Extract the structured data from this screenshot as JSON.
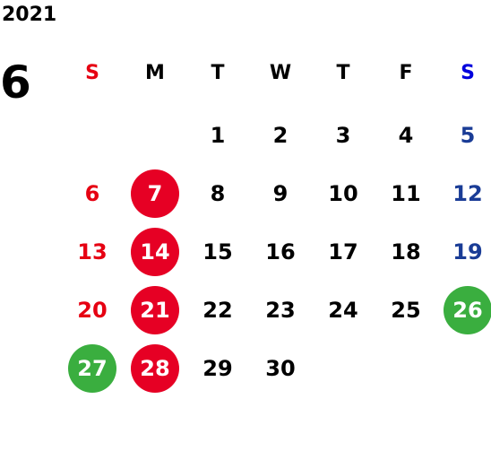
{
  "year": "2021",
  "month": "6",
  "colors": {
    "sunday": "#e60012",
    "saturday": "#1a3c96",
    "saturday_header": "#0000dd",
    "default": "#000000",
    "holiday_red": "#e60024",
    "holiday_green": "#3aae3f",
    "circle_text": "#ffffff"
  },
  "weekdays": [
    "S",
    "M",
    "T",
    "W",
    "T",
    "F",
    "S"
  ],
  "days": [
    {
      "label": "1",
      "col": 2,
      "row": 0
    },
    {
      "label": "2",
      "col": 3,
      "row": 0
    },
    {
      "label": "3",
      "col": 4,
      "row": 0
    },
    {
      "label": "4",
      "col": 5,
      "row": 0
    },
    {
      "label": "5",
      "col": 6,
      "row": 0
    },
    {
      "label": "6",
      "col": 0,
      "row": 1
    },
    {
      "label": "7",
      "col": 1,
      "row": 1,
      "mark": "red"
    },
    {
      "label": "8",
      "col": 2,
      "row": 1
    },
    {
      "label": "9",
      "col": 3,
      "row": 1
    },
    {
      "label": "10",
      "col": 4,
      "row": 1
    },
    {
      "label": "11",
      "col": 5,
      "row": 1
    },
    {
      "label": "12",
      "col": 6,
      "row": 1
    },
    {
      "label": "13",
      "col": 0,
      "row": 2
    },
    {
      "label": "14",
      "col": 1,
      "row": 2,
      "mark": "red"
    },
    {
      "label": "15",
      "col": 2,
      "row": 2
    },
    {
      "label": "16",
      "col": 3,
      "row": 2
    },
    {
      "label": "17",
      "col": 4,
      "row": 2
    },
    {
      "label": "18",
      "col": 5,
      "row": 2
    },
    {
      "label": "19",
      "col": 6,
      "row": 2
    },
    {
      "label": "20",
      "col": 0,
      "row": 3
    },
    {
      "label": "21",
      "col": 1,
      "row": 3,
      "mark": "red"
    },
    {
      "label": "22",
      "col": 2,
      "row": 3
    },
    {
      "label": "23",
      "col": 3,
      "row": 3
    },
    {
      "label": "24",
      "col": 4,
      "row": 3
    },
    {
      "label": "25",
      "col": 5,
      "row": 3
    },
    {
      "label": "26",
      "col": 6,
      "row": 3,
      "mark": "green"
    },
    {
      "label": "27",
      "col": 0,
      "row": 4,
      "mark": "green"
    },
    {
      "label": "28",
      "col": 1,
      "row": 4,
      "mark": "red"
    },
    {
      "label": "29",
      "col": 2,
      "row": 4
    },
    {
      "label": "30",
      "col": 3,
      "row": 4
    }
  ]
}
